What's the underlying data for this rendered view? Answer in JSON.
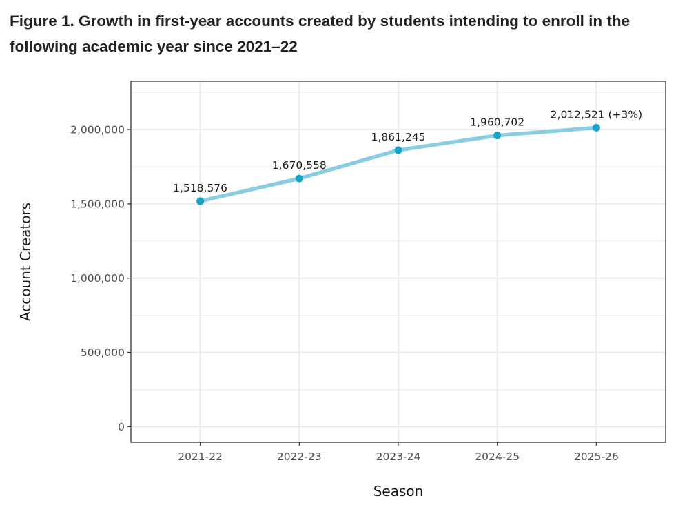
{
  "figure": {
    "title": "Figure 1. Growth in first-year accounts created by students intending to enroll in the following academic year since 2021–22"
  },
  "chart_data": {
    "type": "line",
    "title": "Figure 1. Growth in first-year accounts created by students intending to enroll in the following academic year since 2021–22",
    "xlabel": "Season",
    "ylabel": "Account Creators",
    "categories": [
      "2021-22",
      "2022-23",
      "2023-24",
      "2024-25",
      "2025-26"
    ],
    "series": [
      {
        "name": "Account Creators",
        "values": [
          1518576,
          1670558,
          1861245,
          1960702,
          2012521
        ]
      }
    ],
    "data_labels": [
      "1,518,576",
      "1,670,558",
      "1,861,245",
      "1,960,702",
      "2,012,521 (+3%)"
    ],
    "yticks": [
      0,
      500000,
      1000000,
      1500000,
      2000000
    ],
    "ytick_labels": [
      "0",
      "500,000",
      "1,000,000",
      "1,500,000",
      "2,000,000"
    ],
    "ylim": [
      -105000,
      2325000
    ],
    "grid": true,
    "colors": {
      "line": "#89cde3",
      "point": "#1aa3c8",
      "grid": "#ebebeb",
      "border": "#333333"
    }
  }
}
